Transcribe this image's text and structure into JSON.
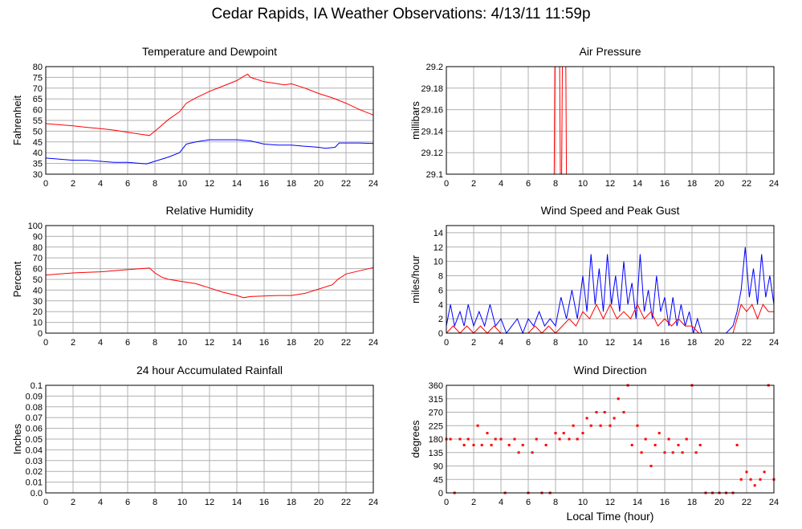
{
  "page": {
    "title": "Cedar Rapids, IA Weather Observations: 4/13/11 11:59p",
    "xlabel": "Local Time (hour)"
  },
  "colors": {
    "red": "#ff0000",
    "blue": "#0000ff",
    "grid": "#b0b0b0",
    "frame": "#000000"
  },
  "chart_data": [
    {
      "id": "temp",
      "type": "line",
      "title": "Temperature and Dewpoint",
      "ylabel": "Fahrenheit",
      "xlabel": "",
      "xlim": [
        0,
        24
      ],
      "ylim": [
        30,
        80
      ],
      "xticks": [
        0,
        2,
        4,
        6,
        8,
        10,
        12,
        14,
        16,
        18,
        20,
        22,
        24
      ],
      "yticks": [
        30,
        35,
        40,
        45,
        50,
        55,
        60,
        65,
        70,
        75,
        80
      ],
      "grid": true,
      "series": [
        {
          "color": "red",
          "x": [
            0,
            1,
            2,
            3,
            4,
            5,
            6,
            7,
            7.6,
            8,
            9,
            9.8,
            10.3,
            11,
            12,
            13,
            14,
            14.5,
            14.8,
            15,
            16,
            17,
            17.5,
            18,
            19,
            20,
            21,
            22,
            23,
            24
          ],
          "y": [
            53.5,
            53,
            52.5,
            51.8,
            51.2,
            50.5,
            49.5,
            48.5,
            48,
            50,
            55.5,
            59,
            63,
            65.5,
            68.5,
            71,
            73.5,
            75.5,
            76.5,
            75,
            73,
            72,
            71.5,
            72,
            70,
            67.5,
            65.5,
            63,
            60,
            57.5
          ]
        },
        {
          "color": "blue",
          "x": [
            0,
            1,
            2,
            3,
            4,
            5,
            6,
            7,
            7.4,
            8,
            9,
            9.8,
            10.3,
            11,
            12,
            13,
            14,
            15,
            16,
            17,
            18,
            19,
            20,
            20.5,
            21.2,
            21.5,
            22,
            23,
            24
          ],
          "y": [
            37.5,
            37,
            36.5,
            36.5,
            36,
            35.5,
            35.5,
            35,
            34.8,
            36,
            38,
            40,
            44,
            45,
            46,
            46,
            46,
            45.5,
            44,
            43.5,
            43.5,
            43,
            42.5,
            42,
            42.5,
            44.5,
            44.5,
            44.5,
            44.3
          ]
        }
      ]
    },
    {
      "id": "pressure",
      "type": "line",
      "title": "Air Pressure",
      "ylabel": "millibars",
      "xlabel": "",
      "xlim": [
        0,
        24
      ],
      "ylim": [
        29.1,
        29.2
      ],
      "xticks": [
        0,
        2,
        4,
        6,
        8,
        10,
        12,
        14,
        16,
        18,
        20,
        22,
        24
      ],
      "yticks": [
        29.1,
        29.12,
        29.14,
        29.16,
        29.18,
        29.2
      ],
      "grid": true,
      "series": [
        {
          "color": "red",
          "x": [
            0,
            7.9,
            7.95,
            8.3,
            8.35,
            8.45,
            8.5,
            8.75,
            8.8,
            24
          ],
          "y": [
            29.1,
            29.1,
            29.2,
            29.2,
            29.1,
            29.1,
            29.2,
            29.2,
            29.1,
            29.1
          ]
        }
      ]
    },
    {
      "id": "humidity",
      "type": "line",
      "title": "Relative Humidity",
      "ylabel": "Percent",
      "xlabel": "",
      "xlim": [
        0,
        24
      ],
      "ylim": [
        0,
        100
      ],
      "xticks": [
        0,
        2,
        4,
        6,
        8,
        10,
        12,
        14,
        16,
        18,
        20,
        22,
        24
      ],
      "yticks": [
        0,
        10,
        20,
        30,
        40,
        50,
        60,
        70,
        80,
        90,
        100
      ],
      "grid": true,
      "series": [
        {
          "color": "red",
          "x": [
            0,
            1,
            2,
            3,
            4,
            5,
            6,
            7,
            7.6,
            8,
            8.5,
            9,
            10,
            11,
            12,
            13,
            14,
            14.5,
            15,
            16,
            17,
            18,
            19,
            20,
            21,
            21.4,
            22,
            23,
            24
          ],
          "y": [
            54,
            55,
            56,
            56.5,
            57,
            58,
            59,
            60,
            60.5,
            56,
            52,
            50,
            48,
            46,
            42,
            38,
            35,
            33,
            34,
            34.5,
            35,
            35,
            37,
            41,
            45,
            50,
            55,
            58,
            61
          ]
        }
      ]
    },
    {
      "id": "wind",
      "type": "line",
      "title": "Wind Speed and Peak Gust",
      "ylabel": "miles/hour",
      "xlabel": "",
      "xlim": [
        0,
        24
      ],
      "ylim": [
        0,
        15
      ],
      "xticks": [
        0,
        2,
        4,
        6,
        8,
        10,
        12,
        14,
        16,
        18,
        20,
        22,
        24
      ],
      "yticks": [
        0,
        2,
        4,
        6,
        8,
        10,
        12,
        14
      ],
      "grid": true,
      "series": [
        {
          "color": "blue",
          "x": [
            0,
            0.3,
            0.6,
            1,
            1.3,
            1.6,
            2,
            2.4,
            2.8,
            3.2,
            3.6,
            4,
            4.4,
            4.8,
            5.2,
            5.6,
            6,
            6.4,
            6.8,
            7.2,
            7.6,
            8,
            8.4,
            8.8,
            9.2,
            9.6,
            10,
            10.3,
            10.6,
            10.9,
            11.2,
            11.5,
            11.8,
            12.1,
            12.4,
            12.7,
            13,
            13.3,
            13.6,
            13.9,
            14.2,
            14.5,
            14.8,
            15.1,
            15.4,
            15.7,
            16,
            16.3,
            16.6,
            16.9,
            17.2,
            17.5,
            17.8,
            18.1,
            18.4,
            18.7,
            19,
            19.5,
            20,
            20.5,
            21,
            21.3,
            21.6,
            21.9,
            22.2,
            22.5,
            22.8,
            23.1,
            23.4,
            23.7,
            24
          ],
          "y": [
            1,
            4,
            1,
            3,
            1,
            4,
            1,
            3,
            1,
            4,
            1,
            2,
            0,
            1,
            2,
            0,
            2,
            1,
            3,
            1,
            2,
            1,
            5,
            2,
            6,
            2,
            8,
            3,
            11,
            4,
            9,
            3,
            11,
            4,
            8,
            3,
            10,
            4,
            7,
            2,
            11,
            3,
            6,
            2,
            8,
            3,
            5,
            1,
            5,
            1,
            4,
            1,
            3,
            0,
            2,
            0,
            0,
            0,
            0,
            0,
            1,
            3,
            6,
            12,
            5,
            9,
            4,
            11,
            5,
            8,
            4
          ]
        },
        {
          "color": "red",
          "x": [
            0,
            0.5,
            1,
            1.5,
            2,
            2.5,
            3,
            3.5,
            4,
            4.5,
            5,
            5.5,
            6,
            6.5,
            7,
            7.5,
            8,
            8.5,
            9,
            9.5,
            10,
            10.5,
            11,
            11.5,
            12,
            12.5,
            13,
            13.5,
            14,
            14.5,
            15,
            15.5,
            16,
            16.5,
            17,
            17.5,
            18,
            18.5,
            19,
            19.5,
            20,
            20.5,
            21,
            21.3,
            21.6,
            22,
            22.4,
            22.8,
            23.2,
            23.6,
            24
          ],
          "y": [
            0,
            1,
            0,
            1,
            0,
            1,
            0,
            1,
            0,
            0,
            0,
            0,
            0,
            1,
            0,
            1,
            0,
            1,
            2,
            1,
            3,
            2,
            4,
            2,
            4,
            2,
            3,
            2,
            4,
            2,
            3,
            1,
            2,
            1,
            2,
            1,
            1,
            0,
            0,
            0,
            0,
            0,
            0,
            2,
            4,
            3,
            4,
            2,
            4,
            3,
            3
          ]
        }
      ]
    },
    {
      "id": "rain",
      "type": "line",
      "title": "24 hour Accumulated Rainfall",
      "ylabel": "Inches",
      "xlabel": "",
      "xlim": [
        0,
        24
      ],
      "ylim": [
        0,
        0.1
      ],
      "xticks": [
        0,
        2,
        4,
        6,
        8,
        10,
        12,
        14,
        16,
        18,
        20,
        22,
        24
      ],
      "yticks": [
        "0.0",
        "0.01",
        "0.02",
        "0.03",
        "0.04",
        "0.05",
        "0.06",
        "0.07",
        "0.08",
        "0.09",
        "0.1"
      ],
      "grid": true,
      "series": [
        {
          "color": "red",
          "x": [
            0,
            24
          ],
          "y": [
            0,
            0
          ]
        }
      ]
    },
    {
      "id": "direction",
      "type": "scatter",
      "title": "Wind Direction",
      "ylabel": "degrees",
      "xlabel": "Local Time (hour)",
      "xlim": [
        0,
        24
      ],
      "ylim": [
        0,
        360
      ],
      "xticks": [
        0,
        2,
        4,
        6,
        8,
        10,
        12,
        14,
        16,
        18,
        20,
        22,
        24
      ],
      "yticks": [
        0,
        45,
        90,
        135,
        180,
        225,
        270,
        315,
        360
      ],
      "grid": true,
      "series": [
        {
          "color": "red",
          "x": [
            0,
            0.3,
            0.6,
            1,
            1.3,
            1.6,
            2,
            2.3,
            2.6,
            3,
            3.3,
            3.6,
            4,
            4.3,
            4.6,
            5,
            5.3,
            5.6,
            6,
            6.3,
            6.6,
            7,
            7.3,
            7.6,
            8,
            8.3,
            8.6,
            9,
            9.3,
            9.6,
            10,
            10.3,
            10.6,
            11,
            11.3,
            11.6,
            12,
            12.3,
            12.6,
            13,
            13.3,
            13.6,
            14,
            14.3,
            14.6,
            15,
            15.3,
            15.6,
            16,
            16.3,
            16.6,
            17,
            17.3,
            17.6,
            18,
            18.3,
            18.6,
            19,
            19.5,
            20,
            20.5,
            21,
            21.3,
            21.6,
            22,
            22.3,
            22.6,
            23,
            23.3,
            23.6,
            24
          ],
          "y": [
            180,
            180,
            0,
            180,
            160,
            180,
            160,
            225,
            160,
            200,
            160,
            180,
            180,
            0,
            160,
            180,
            135,
            160,
            0,
            135,
            180,
            0,
            160,
            0,
            200,
            180,
            200,
            180,
            225,
            180,
            200,
            250,
            225,
            270,
            225,
            270,
            225,
            250,
            315,
            270,
            360,
            160,
            225,
            135,
            180,
            90,
            160,
            200,
            135,
            180,
            135,
            160,
            135,
            180,
            360,
            135,
            160,
            0,
            0,
            0,
            0,
            0,
            160,
            45,
            70,
            45,
            25,
            45,
            70,
            360,
            45
          ]
        }
      ]
    }
  ]
}
